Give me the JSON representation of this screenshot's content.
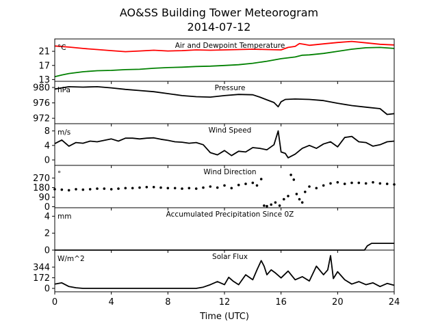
{
  "title_line1": "AO&SS Building Tower Meteorogram",
  "title_line2": "2014-07-12",
  "xlabel": "Time (UTC)",
  "xticks": [
    "0",
    "4",
    "8",
    "12",
    "16",
    "20",
    "24"
  ],
  "colors": {
    "temperature": "#ff0000",
    "dewpoint": "#008000",
    "black": "#000000"
  },
  "chart_data": [
    {
      "type": "line",
      "title": "Air and Dewpoint Temperature",
      "unit_label": "°C",
      "ylim": [
        12.5,
        24.5
      ],
      "yticks": [
        13,
        17,
        21
      ],
      "series": [
        {
          "key": "temperature",
          "x": [
            0,
            1,
            2,
            3,
            4,
            5,
            6,
            7,
            8,
            9,
            10,
            11,
            12,
            13,
            14,
            15,
            16,
            16.5,
            17,
            17.3,
            17.6,
            18,
            19,
            20,
            21,
            22,
            23,
            24
          ],
          "values": [
            22.5,
            22.2,
            21.8,
            21.5,
            21.2,
            20.9,
            21.1,
            21.3,
            21.1,
            21.2,
            21.4,
            21.3,
            21.4,
            21.5,
            21.6,
            21.5,
            21.4,
            22.1,
            22.4,
            23.2,
            23.0,
            22.7,
            23.1,
            23.5,
            23.8,
            23.4,
            23.0,
            22.8
          ]
        },
        {
          "key": "dewpoint",
          "x": [
            0,
            0.5,
            1,
            2,
            3,
            4,
            5,
            6,
            7,
            8,
            9,
            10,
            11,
            12,
            13,
            14,
            15,
            16,
            17,
            17.5,
            18,
            19,
            20,
            21,
            22,
            23,
            24
          ],
          "values": [
            13.8,
            14.3,
            14.7,
            15.2,
            15.5,
            15.6,
            15.8,
            15.9,
            16.2,
            16.4,
            16.5,
            16.7,
            16.8,
            17.0,
            17.2,
            17.6,
            18.2,
            18.9,
            19.4,
            19.9,
            20.0,
            20.4,
            21.0,
            21.6,
            22.0,
            22.1,
            21.8
          ]
        }
      ]
    },
    {
      "type": "line",
      "title": "Pressure",
      "unit_label": "hPa",
      "ylim": [
        970.6,
        981.6
      ],
      "yticks": [
        972,
        976,
        980
      ],
      "series": [
        {
          "key": "pressure",
          "x": [
            0,
            1,
            2,
            3,
            4,
            5,
            6,
            7,
            8,
            9,
            10,
            11,
            12,
            13,
            14,
            14.5,
            15,
            15.5,
            15.8,
            16,
            16.3,
            17,
            18,
            19,
            20,
            21,
            22,
            23,
            23.5,
            24
          ],
          "values": [
            979.6,
            980.2,
            980.1,
            980.2,
            979.9,
            979.5,
            979.2,
            978.9,
            978.4,
            977.9,
            977.6,
            977.5,
            977.9,
            978.2,
            978.1,
            977.5,
            976.8,
            976.1,
            975.0,
            976.3,
            976.9,
            977.0,
            976.9,
            976.6,
            975.9,
            975.3,
            974.9,
            974.5,
            973.0,
            973.2
          ]
        }
      ]
    },
    {
      "type": "line",
      "title": "Wind Speed",
      "unit_label": "m/s",
      "ylim": [
        -1.5,
        10
      ],
      "yticks": [
        0,
        4,
        8
      ],
      "series": [
        {
          "key": "wind_speed",
          "x": [
            0,
            0.5,
            1,
            1.5,
            2,
            2.5,
            3,
            3.5,
            4,
            4.5,
            5,
            5.5,
            6,
            6.5,
            7,
            7.5,
            8,
            8.5,
            9,
            9.5,
            10,
            10.5,
            11,
            11.5,
            12,
            12.5,
            13,
            13.5,
            14,
            14.5,
            15,
            15.5,
            15.8,
            16,
            16.3,
            16.5,
            17,
            17.5,
            18,
            18.5,
            19,
            19.5,
            20,
            20.5,
            21,
            21.5,
            22,
            22.5,
            23,
            23.5,
            24
          ],
          "values": [
            4.5,
            5.5,
            3.8,
            4.8,
            4.6,
            5.2,
            5.0,
            5.4,
            5.8,
            5.2,
            6.0,
            6.0,
            5.8,
            6.0,
            6.1,
            5.7,
            5.4,
            5.0,
            4.9,
            4.6,
            4.8,
            4.2,
            2.0,
            1.4,
            2.6,
            1.2,
            2.4,
            2.2,
            3.4,
            3.2,
            2.8,
            4.2,
            8.0,
            2.2,
            1.8,
            0.6,
            1.6,
            3.2,
            4.0,
            3.2,
            4.4,
            5.0,
            3.6,
            6.2,
            6.5,
            5.0,
            4.8,
            3.8,
            4.2,
            5.0,
            5.2
          ]
        }
      ]
    },
    {
      "type": "scatter",
      "title": "Wind Direction",
      "unit_label": "°",
      "ylim": [
        -10,
        390
      ],
      "yticks": [
        0,
        90,
        180,
        270
      ],
      "series": [
        {
          "key": "wind_direction",
          "x": [
            0,
            0.5,
            1,
            1.5,
            2,
            2.5,
            3,
            3.5,
            4,
            4.5,
            5,
            5.5,
            6,
            6.5,
            7,
            7.5,
            8,
            8.5,
            9,
            9.5,
            10,
            10.5,
            11,
            11.5,
            12,
            12.5,
            13,
            13.5,
            14,
            14.3,
            14.6,
            14.8,
            15,
            15.3,
            15.6,
            15.9,
            16.2,
            16.5,
            16.7,
            16.9,
            17.1,
            17.3,
            17.5,
            17.7,
            18,
            18.5,
            19,
            19.5,
            20,
            20.5,
            21,
            21.5,
            22,
            22.5,
            23,
            23.5,
            24
          ],
          "values": [
            165,
            160,
            155,
            165,
            160,
            165,
            170,
            170,
            165,
            170,
            175,
            175,
            180,
            185,
            185,
            180,
            175,
            175,
            170,
            175,
            170,
            180,
            190,
            180,
            200,
            175,
            205,
            215,
            225,
            200,
            260,
            10,
            5,
            20,
            40,
            10,
            70,
            100,
            300,
            255,
            120,
            70,
            40,
            140,
            190,
            175,
            200,
            220,
            230,
            215,
            225,
            225,
            220,
            230,
            220,
            215,
            210
          ]
        }
      ]
    },
    {
      "type": "line",
      "title": "Accumulated Precipitation Since 0Z",
      "unit_label": "mm",
      "ylim": [
        0,
        5
      ],
      "yticks": [
        0,
        2,
        4
      ],
      "series": [
        {
          "key": "precipitation",
          "x": [
            0,
            21.9,
            22.1,
            22.4,
            24
          ],
          "values": [
            0,
            0,
            0.5,
            0.8,
            0.8
          ]
        }
      ]
    },
    {
      "type": "line",
      "title": "Solar Flux",
      "unit_label": "W/m^2",
      "ylim": [
        -55,
        620
      ],
      "yticks": [
        0,
        172,
        344
      ],
      "series": [
        {
          "key": "solar_flux",
          "x": [
            0,
            0.5,
            1,
            1.5,
            2,
            3,
            4,
            5,
            6,
            7,
            8,
            9,
            10,
            10.5,
            11,
            11.5,
            12,
            12.3,
            12.6,
            13,
            13.5,
            14,
            14.3,
            14.6,
            14.8,
            15,
            15.3,
            15.6,
            16,
            16.5,
            17,
            17.5,
            18,
            18.5,
            19,
            19.3,
            19.5,
            19.7,
            20,
            20.5,
            21,
            21.5,
            22,
            22.5,
            23,
            23.5,
            24
          ],
          "values": [
            70,
            90,
            30,
            10,
            0,
            0,
            0,
            0,
            0,
            0,
            0,
            0,
            0,
            20,
            60,
            110,
            60,
            180,
            120,
            60,
            220,
            140,
            300,
            450,
            360,
            220,
            300,
            250,
            170,
            280,
            140,
            190,
            120,
            360,
            220,
            300,
            530,
            160,
            270,
            140,
            70,
            110,
            60,
            90,
            30,
            80,
            50
          ]
        }
      ]
    }
  ]
}
